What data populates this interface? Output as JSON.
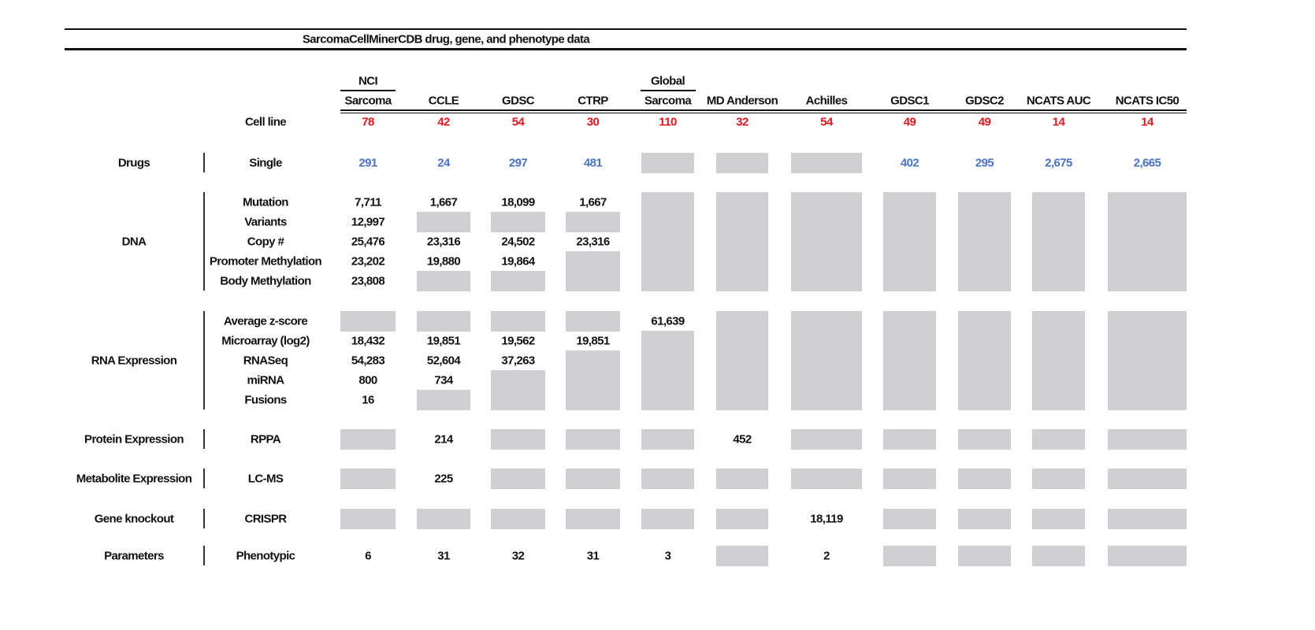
{
  "title": "SarcomaCellMinerCDB drug, gene, and phenotype data",
  "colors": {
    "cell_line": "#e8141b",
    "drugs": "#4a72c4",
    "missing": "#d0cfd1"
  },
  "columns": [
    {
      "top": "NCI",
      "label": "Sarcoma"
    },
    {
      "top": "",
      "label": "CCLE"
    },
    {
      "top": "",
      "label": "GDSC"
    },
    {
      "top": "",
      "label": "CTRP"
    },
    {
      "top": "Global",
      "label": "Sarcoma"
    },
    {
      "top": "",
      "label": "MD Anderson"
    },
    {
      "top": "",
      "label": "Achilles"
    },
    {
      "top": "",
      "label": "GDSC1"
    },
    {
      "top": "",
      "label": "GDSC2"
    },
    {
      "top": "",
      "label": "NCATS AUC"
    },
    {
      "top": "",
      "label": "NCATS IC50"
    }
  ],
  "cell_line": {
    "label": "Cell line",
    "values": [
      "78",
      "42",
      "54",
      "30",
      "110",
      "32",
      "54",
      "49",
      "49",
      "14",
      "14"
    ]
  },
  "groups": [
    {
      "label": "Drugs",
      "rows": [
        {
          "label": "Single",
          "values": [
            "291",
            "24",
            "297",
            "481",
            null,
            null,
            null,
            "402",
            "295",
            "2,675",
            "2,665"
          ]
        }
      ]
    },
    {
      "label": "DNA",
      "rows": [
        {
          "label": "Mutation",
          "values": [
            "7,711",
            "1,667",
            "18,099",
            "1,667",
            null,
            null,
            null,
            null,
            null,
            null,
            null
          ]
        },
        {
          "label": "Variants",
          "values": [
            "12,997",
            null,
            null,
            null,
            null,
            null,
            null,
            null,
            null,
            null,
            null
          ]
        },
        {
          "label": "Copy #",
          "values": [
            "25,476",
            "23,316",
            "24,502",
            "23,316",
            null,
            null,
            null,
            null,
            null,
            null,
            null
          ]
        },
        {
          "label": "Promoter Methylation",
          "values": [
            "23,202",
            "19,880",
            "19,864",
            null,
            null,
            null,
            null,
            null,
            null,
            null,
            null
          ]
        },
        {
          "label": "Body Methylation",
          "values": [
            "23,808",
            null,
            null,
            null,
            null,
            null,
            null,
            null,
            null,
            null,
            null
          ]
        }
      ]
    },
    {
      "label": "RNA Expression",
      "rows": [
        {
          "label": "Average z-score",
          "values": [
            null,
            null,
            null,
            null,
            "61,639",
            null,
            null,
            null,
            null,
            null,
            null
          ]
        },
        {
          "label": "Microarray (log2)",
          "values": [
            "18,432",
            "19,851",
            "19,562",
            "19,851",
            null,
            null,
            null,
            null,
            null,
            null,
            null
          ]
        },
        {
          "label": "RNASeq",
          "values": [
            "54,283",
            "52,604",
            "37,263",
            null,
            null,
            null,
            null,
            null,
            null,
            null,
            null
          ]
        },
        {
          "label": "miRNA",
          "values": [
            "800",
            "734",
            null,
            null,
            null,
            null,
            null,
            null,
            null,
            null,
            null
          ]
        },
        {
          "label": "Fusions",
          "values": [
            "16",
            null,
            null,
            null,
            null,
            null,
            null,
            null,
            null,
            null,
            null
          ]
        }
      ]
    },
    {
      "label": "Protein Expression",
      "rows": [
        {
          "label": "RPPA",
          "values": [
            null,
            "214",
            null,
            null,
            null,
            "452",
            null,
            null,
            null,
            null,
            null
          ]
        }
      ]
    },
    {
      "label": "Metabolite Expression",
      "rows": [
        {
          "label": "LC-MS",
          "values": [
            null,
            "225",
            null,
            null,
            null,
            null,
            null,
            null,
            null,
            null,
            null
          ]
        }
      ]
    },
    {
      "label": "Gene knockout",
      "rows": [
        {
          "label": "CRISPR",
          "values": [
            null,
            null,
            null,
            null,
            null,
            null,
            "18,119",
            null,
            null,
            null,
            null
          ]
        }
      ]
    },
    {
      "label": "Parameters",
      "rows": [
        {
          "label": "Phenotypic",
          "values": [
            "6",
            "31",
            "32",
            "31",
            "3",
            null,
            "2",
            null,
            null,
            null,
            null
          ]
        }
      ]
    }
  ]
}
